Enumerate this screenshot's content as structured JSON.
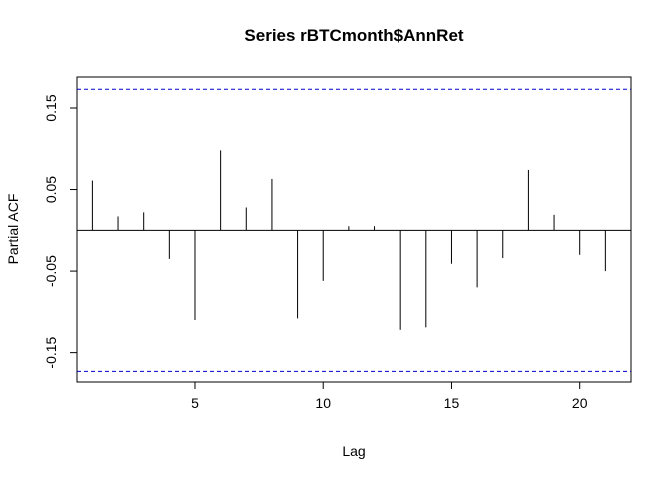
{
  "chart_data": {
    "type": "bar",
    "subtype": "partial-acf",
    "title": "Series  rBTCmonth$AnnRet",
    "xlabel": "Lag",
    "ylabel": "Partial ACF",
    "x": [
      1,
      2,
      3,
      4,
      5,
      6,
      7,
      8,
      9,
      10,
      11,
      12,
      13,
      14,
      15,
      16,
      17,
      18,
      19,
      20,
      21
    ],
    "values": [
      0.061,
      0.017,
      0.022,
      -0.035,
      -0.11,
      0.098,
      0.028,
      0.063,
      -0.108,
      -0.062,
      0.005,
      0.005,
      -0.122,
      -0.119,
      -0.041,
      -0.07,
      -0.034,
      0.074,
      0.019,
      -0.03,
      -0.05
    ],
    "confidence_bound": 0.173,
    "xlim": [
      0.4,
      22.0
    ],
    "ylim": [
      -0.186,
      0.188
    ],
    "xticks": [
      5,
      10,
      15,
      20
    ],
    "xtick_labels": [
      "5",
      "10",
      "15",
      "20"
    ],
    "yticks": [
      0.15,
      0.05,
      -0.05,
      -0.15
    ],
    "ytick_labels": [
      "0.15",
      "0.05",
      "-0.05",
      "-0.15"
    ],
    "zero_line": true,
    "grid": false,
    "confidence_line_color": "#0000CD",
    "bar_color": "#000000"
  }
}
